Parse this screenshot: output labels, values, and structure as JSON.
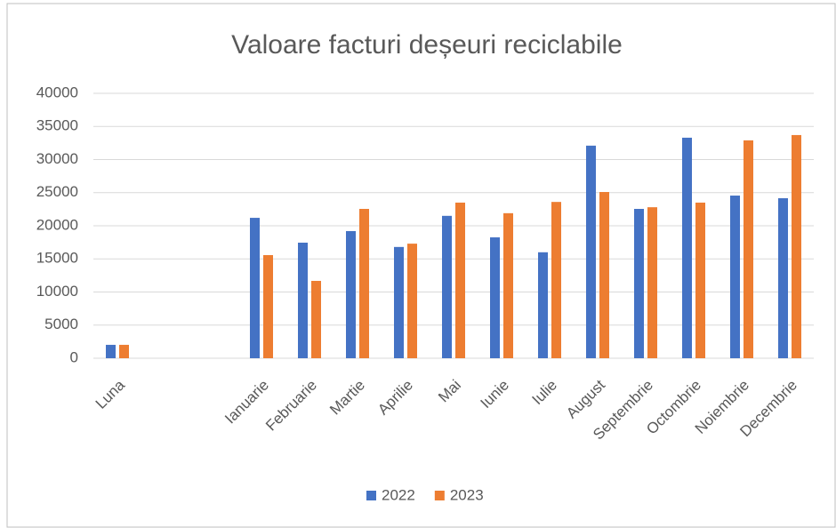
{
  "chart_data": {
    "type": "bar",
    "title": "Valoare facturi deșeuri reciclabile",
    "categories": [
      "Luna",
      null,
      null,
      "Ianuarie",
      "Februarie",
      "Martie",
      "Aprilie",
      "Mai",
      "Iunie",
      "Iulie",
      "August",
      "Septembrie",
      "Octombrie",
      "Noiembrie",
      "Decembrie"
    ],
    "series": [
      {
        "name": "2022",
        "color": "#4472c4",
        "values": [
          2022,
          null,
          null,
          21200,
          17450,
          19200,
          16800,
          21500,
          18250,
          16000,
          32100,
          22550,
          33300,
          24560,
          24160
        ]
      },
      {
        "name": "2023",
        "color": "#ed7d31",
        "values": [
          2023,
          null,
          null,
          15570,
          11680,
          22550,
          17300,
          23500,
          21900,
          23600,
          25100,
          22800,
          23500,
          32900,
          33700
        ]
      }
    ],
    "ylim": [
      0,
      40000
    ],
    "yticks": [
      0,
      5000,
      10000,
      15000,
      20000,
      25000,
      30000,
      35000,
      40000
    ],
    "grid": true,
    "legend": "bottom"
  }
}
